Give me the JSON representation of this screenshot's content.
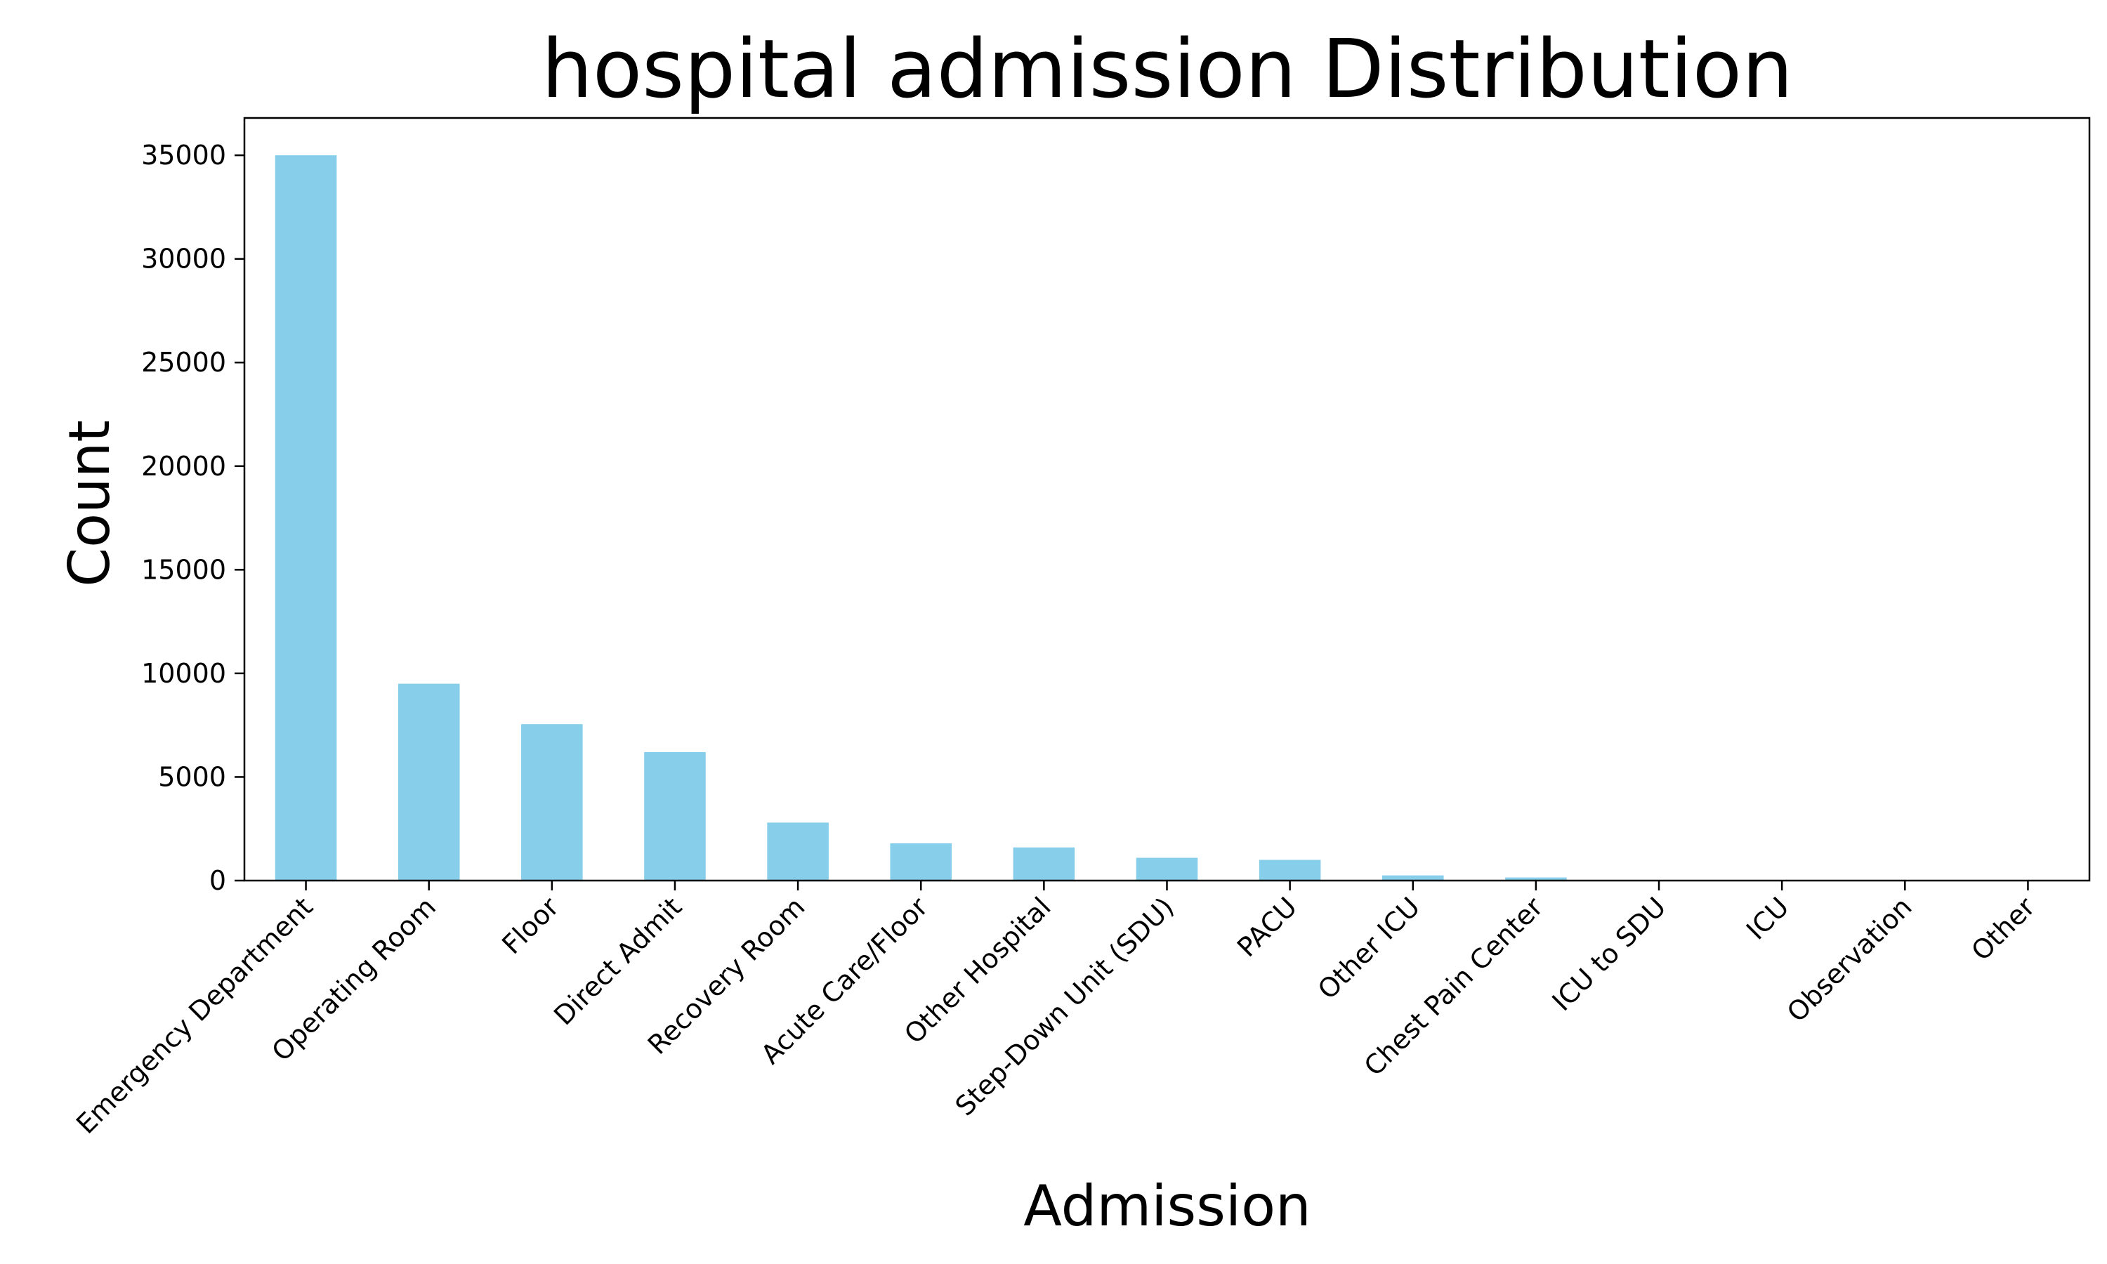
{
  "chart_data": {
    "type": "bar",
    "title": "hospital admission Distribution",
    "xlabel": "Admission",
    "ylabel": "Count",
    "categories": [
      "Emergency Department",
      "Operating Room",
      "Floor",
      "Direct Admit",
      "Recovery Room",
      "Acute Care/Floor",
      "Other Hospital",
      "Step-Down Unit (SDU)",
      "PACU",
      "Other ICU",
      "Chest Pain Center",
      "ICU to SDU",
      "ICU",
      "Observation",
      "Other"
    ],
    "values": [
      35000,
      9500,
      7550,
      6200,
      2800,
      1800,
      1600,
      1100,
      1000,
      250,
      150,
      10,
      5,
      5,
      2
    ],
    "ylim": [
      0,
      36800
    ],
    "yticks": [
      "0",
      "5000",
      "10000",
      "15000",
      "20000",
      "25000",
      "30000",
      "35000"
    ],
    "grid": false,
    "legend": "none",
    "bar_color": "#87ceeb"
  }
}
